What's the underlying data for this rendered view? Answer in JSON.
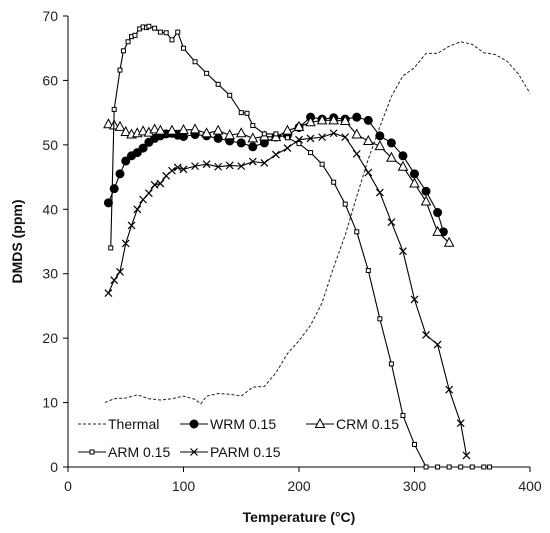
{
  "chart_data": {
    "type": "line",
    "title": "",
    "xlabel": "Temperature (°C)",
    "ylabel": "DMDS (ppm)",
    "xlim": [
      0,
      400
    ],
    "ylim": [
      0,
      70
    ],
    "xticks": [
      0,
      100,
      200,
      300,
      400
    ],
    "yticks": [
      0,
      10,
      20,
      30,
      40,
      50,
      60,
      70
    ],
    "grid": false,
    "legend_placement": "bottom-left",
    "series": [
      {
        "name": "Thermal",
        "marker": "none",
        "dash": "dashed",
        "color": "#222222",
        "x": [
          32,
          40,
          50,
          60,
          70,
          80,
          90,
          100,
          110,
          115,
          120,
          130,
          140,
          150,
          160,
          170,
          180,
          190,
          200,
          210,
          220,
          230,
          240,
          250,
          260,
          270,
          280,
          290,
          300,
          310,
          320,
          330,
          340,
          350,
          360,
          370,
          380,
          390,
          400
        ],
        "y": [
          10,
          10.6,
          10.7,
          11.2,
          10.6,
          10.4,
          10.6,
          11.0,
          10.5,
          9.8,
          11.0,
          11.4,
          11.3,
          11.0,
          12.4,
          12.5,
          14.6,
          17.6,
          19.6,
          22.0,
          25.5,
          31.0,
          36.0,
          42.0,
          47.8,
          52.8,
          57.5,
          60.7,
          62.0,
          64.2,
          64.2,
          65.3,
          66.0,
          65.6,
          64.3,
          64.0,
          63.0,
          61.0,
          58.0
        ]
      },
      {
        "name": "WRM 0.15",
        "marker": "filled-circle",
        "dash": "solid",
        "color": "#000000",
        "x": [
          35,
          40,
          45,
          50,
          55,
          60,
          65,
          70,
          75,
          80,
          85,
          90,
          95,
          100,
          110,
          120,
          130,
          140,
          150,
          160,
          170,
          180,
          190,
          200,
          210,
          220,
          230,
          240,
          250,
          260,
          270,
          280,
          290,
          300,
          310,
          320,
          325
        ],
        "y": [
          41,
          43.2,
          45.5,
          47.5,
          48.3,
          48.8,
          49.5,
          50.4,
          51.0,
          51.4,
          51.7,
          51.8,
          51.5,
          51.3,
          51.6,
          51.4,
          51.0,
          50.6,
          50.3,
          49.7,
          50.3,
          51.2,
          51.5,
          52.7,
          54.3,
          54.0,
          54.2,
          54.0,
          54.3,
          53.8,
          51.4,
          50.3,
          48.3,
          45.5,
          42.8,
          39.5,
          36.5
        ]
      },
      {
        "name": "CRM 0.15",
        "marker": "open-triangle",
        "dash": "solid",
        "color": "#000000",
        "x": [
          35,
          40,
          45,
          50,
          55,
          60,
          65,
          70,
          75,
          80,
          90,
          100,
          110,
          120,
          130,
          140,
          150,
          160,
          170,
          180,
          190,
          200,
          210,
          220,
          230,
          240,
          250,
          260,
          270,
          280,
          290,
          300,
          310,
          320,
          330
        ],
        "y": [
          53.2,
          53.0,
          52.8,
          52.0,
          51.6,
          51.8,
          52.1,
          51.9,
          52.4,
          52.2,
          52.2,
          52.3,
          52.4,
          51.8,
          52.2,
          51.5,
          51.8,
          51.0,
          51.3,
          51.2,
          52.2,
          52.8,
          53.5,
          53.8,
          53.8,
          53.7,
          51.6,
          50.6,
          49.8,
          48.0,
          46.6,
          44.0,
          41.2,
          36.5,
          34.8
        ]
      },
      {
        "name": "ARM 0.15",
        "marker": "open-square",
        "dash": "solid",
        "color": "#000000",
        "x": [
          37,
          40,
          45,
          48,
          52,
          55,
          58,
          62,
          65,
          68,
          70,
          75,
          80,
          85,
          90,
          95,
          100,
          110,
          120,
          130,
          140,
          150,
          155,
          160,
          170,
          180,
          190,
          200,
          210,
          220,
          230,
          240,
          250,
          260,
          270,
          280,
          290,
          300,
          310,
          320,
          330,
          340,
          350,
          360,
          365
        ],
        "y": [
          34,
          55.5,
          61.6,
          64.6,
          66.0,
          66.8,
          67.0,
          68.0,
          68.3,
          68.2,
          68.4,
          68.1,
          67.5,
          67.4,
          66.3,
          67.5,
          65.0,
          62.9,
          61.1,
          59.4,
          57.7,
          55.0,
          54.9,
          53.0,
          51.7,
          51.7,
          51.1,
          50.2,
          48.8,
          47.0,
          44.2,
          40.8,
          36.5,
          30.5,
          23.0,
          16.0,
          8.0,
          3.5,
          0,
          0,
          0,
          0,
          0,
          0,
          0
        ]
      },
      {
        "name": "PARM 0.15",
        "marker": "cross",
        "dash": "solid",
        "color": "#000000",
        "x": [
          35,
          40,
          45,
          50,
          55,
          60,
          65,
          70,
          75,
          80,
          85,
          90,
          95,
          100,
          110,
          120,
          130,
          140,
          150,
          160,
          170,
          180,
          190,
          200,
          210,
          220,
          230,
          240,
          250,
          260,
          270,
          280,
          290,
          300,
          310,
          320,
          330,
          340,
          345
        ],
        "y": [
          27,
          29,
          30.3,
          34.7,
          37.5,
          40.0,
          41.5,
          42.5,
          43.8,
          44.0,
          45.2,
          46.0,
          46.5,
          46.2,
          46.7,
          47.0,
          46.6,
          46.8,
          46.7,
          47.4,
          47.2,
          48.5,
          49.5,
          50.8,
          51.0,
          51.2,
          51.8,
          51.2,
          48.6,
          45.7,
          42.6,
          38.0,
          33.5,
          26.0,
          20.5,
          19.0,
          12.0,
          6.8,
          1.8
        ]
      }
    ]
  }
}
